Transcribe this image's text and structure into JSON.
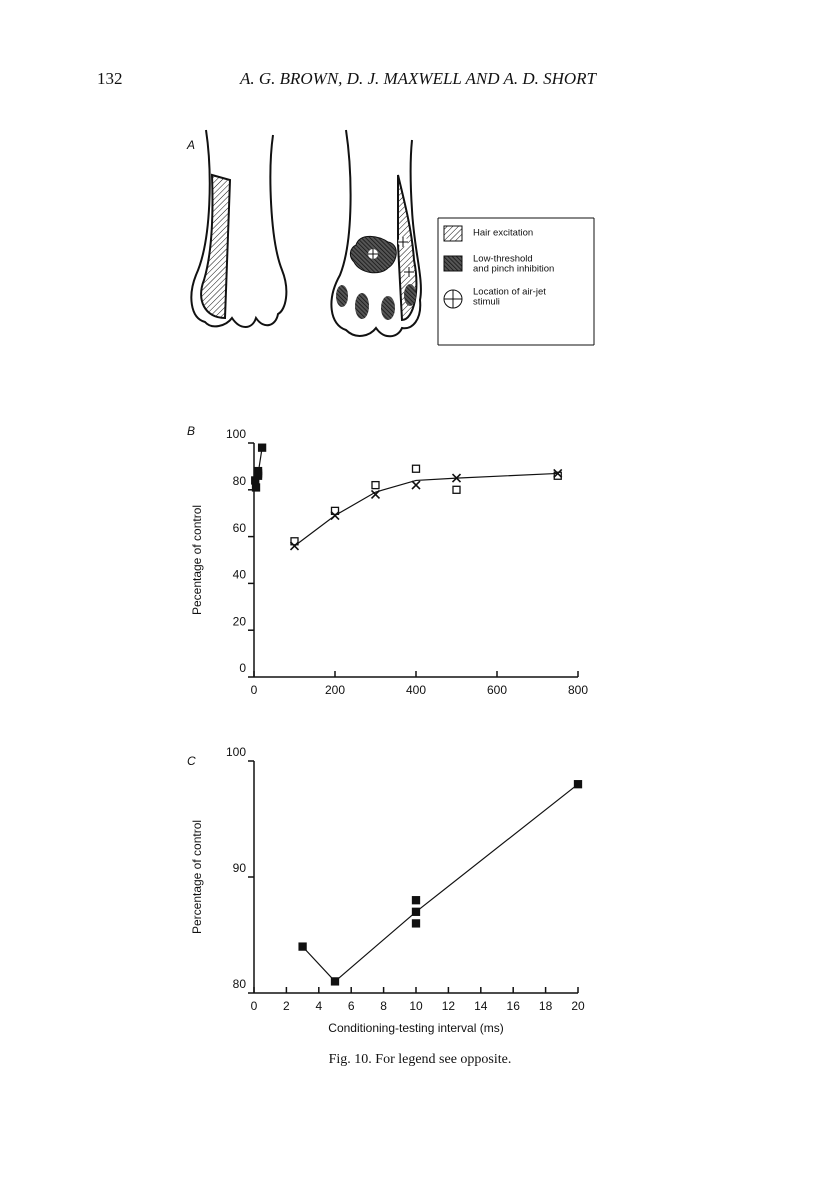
{
  "page_number": "132",
  "running_head": "A. G. BROWN, D. J. MAXWELL AND A. D. SHORT",
  "panel_labels": [
    "A",
    "B",
    "C"
  ],
  "legend_a": [
    {
      "lines": [
        "Hair excitation"
      ]
    },
    {
      "lines": [
        "Low-threshold",
        "and pinch inhibition"
      ]
    },
    {
      "lines": [
        "Location of air-jet",
        "stimuli"
      ]
    }
  ],
  "chart_data": [
    {
      "type": "scatter",
      "ylabel": "Pecentage of control",
      "xlim": [
        0,
        800
      ],
      "xticks": [
        0,
        200,
        400,
        600,
        800
      ],
      "ylim": [
        0,
        100
      ],
      "yticks": [
        0,
        20,
        40,
        60,
        80,
        100
      ],
      "series": [
        {
          "marker": "square-open",
          "color": "#111",
          "x": [
            100,
            200,
            300,
            400,
            500,
            750
          ],
          "values": [
            58,
            71,
            82,
            89,
            80,
            86
          ]
        },
        {
          "marker": "cross",
          "color": "#111",
          "x": [
            100,
            200,
            300,
            400,
            500,
            750
          ],
          "values": [
            56,
            69,
            78,
            82,
            85,
            87
          ]
        },
        {
          "marker": "square-filled",
          "color": "#111",
          "x": [
            3,
            5,
            10,
            10,
            10,
            20
          ],
          "values": [
            84,
            81,
            86,
            87,
            88,
            98
          ]
        },
        {
          "line": true,
          "color": "#111",
          "x": [
            100,
            200,
            300,
            400,
            500,
            750
          ],
          "values": [
            56,
            69,
            79,
            84,
            85,
            87
          ]
        },
        {
          "line": true,
          "color": "#111",
          "x": [
            3,
            5,
            20
          ],
          "values": [
            84,
            81,
            98
          ]
        }
      ]
    },
    {
      "type": "scatter",
      "xlabel": "Conditioning-testing interval (ms)",
      "ylabel": "Percentage of control",
      "xlim": [
        0,
        20
      ],
      "xticks": [
        0,
        2,
        4,
        6,
        8,
        10,
        12,
        14,
        16,
        18,
        20
      ],
      "ylim": [
        80,
        100
      ],
      "yticks": [
        80,
        90,
        100
      ],
      "series": [
        {
          "marker": "square-filled",
          "color": "#111",
          "x": [
            3,
            5,
            10,
            10,
            10,
            20
          ],
          "values": [
            84,
            81,
            86,
            87,
            88,
            98
          ]
        },
        {
          "line": true,
          "color": "#111",
          "x": [
            3,
            5,
            10,
            20
          ],
          "values": [
            84,
            81,
            87,
            98
          ]
        }
      ]
    }
  ],
  "caption": "Fig. 10. For legend see opposite."
}
